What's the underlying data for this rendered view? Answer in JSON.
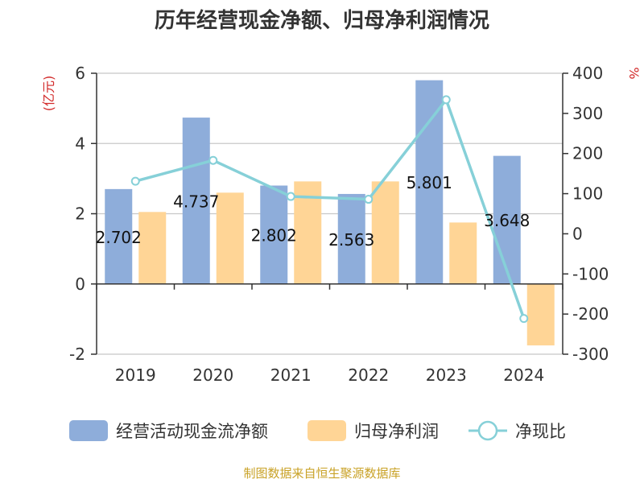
{
  "chart_data": {
    "type": "bar",
    "title": "历年经营现金净额、归母净利润情况",
    "categories": [
      "2019",
      "2020",
      "2021",
      "2022",
      "2023",
      "2024"
    ],
    "left_axis": {
      "unit": "(亿元)",
      "ylim": [
        -2,
        6
      ],
      "ticks": [
        6,
        4,
        2,
        0,
        -2
      ]
    },
    "right_axis": {
      "unit": "%",
      "ylim": [
        -300,
        400
      ],
      "ticks": [
        400,
        300,
        200,
        100,
        0,
        -100,
        -200,
        -300
      ]
    },
    "series": [
      {
        "name": "经营活动现金流净额",
        "kind": "bar",
        "axis": "left",
        "color": "#8eadda",
        "values": [
          2.702,
          4.737,
          2.802,
          2.563,
          5.801,
          3.648
        ]
      },
      {
        "name": "归母净利润",
        "kind": "bar",
        "axis": "left",
        "color": "#ffd596",
        "values": [
          2.05,
          2.6,
          2.92,
          2.92,
          1.75,
          -1.75
        ]
      },
      {
        "name": "净现比",
        "kind": "line",
        "axis": "right",
        "color": "#86d0d8",
        "values": [
          131,
          183,
          93,
          86,
          334,
          -211
        ]
      }
    ],
    "data_labels": [
      "2.702",
      "4.737",
      "2.802",
      "2.563",
      "5.801",
      "3.648"
    ],
    "grid": true,
    "legend_position": "bottom"
  },
  "source_text": "制图数据来自恒生聚源数据库"
}
